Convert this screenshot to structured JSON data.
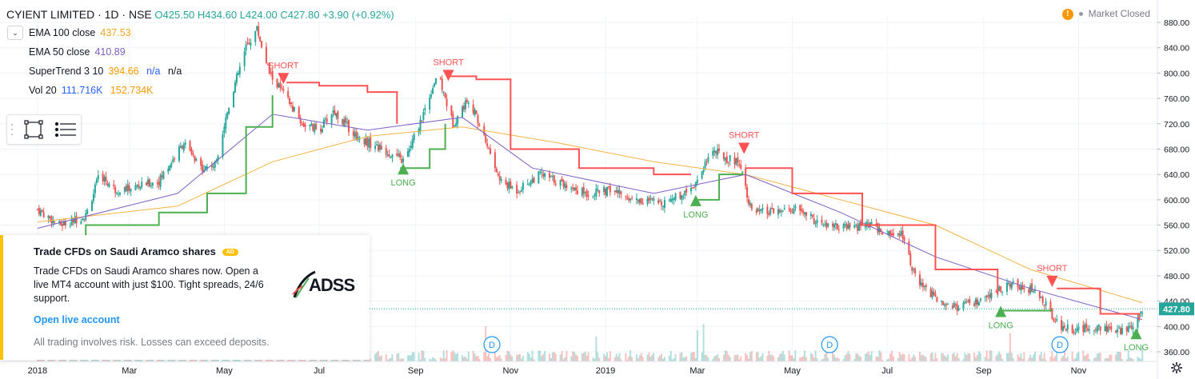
{
  "header": {
    "symbol": "CYIENT LIMITED · 1D · NSE",
    "open": "O425.50",
    "high": "H434.60",
    "low": "L424.00",
    "close": "C427.80",
    "change": "+3.90 (+0.92%)"
  },
  "indicators": [
    {
      "label": "EMA 100 close",
      "value": "437.53",
      "color": "#f5a623"
    },
    {
      "label": "EMA 50 close",
      "value": "410.89",
      "color": "#7b5fc4"
    },
    {
      "label": "SuperTrend 3 10",
      "value": "394.66",
      "value2": "n/a",
      "value3": "n/a",
      "color": "#ff9800"
    },
    {
      "label": "Vol 20",
      "value": "111.716K",
      "value2": "152.734K",
      "color": "#2962ff"
    }
  ],
  "market_status": "Market Closed",
  "ad": {
    "title": "Trade CFDs on Saudi Aramco shares",
    "badge": "AD",
    "body": "Trade CFDs on Saudi Aramco shares now. Open a live MT4 account with just $100. Tight spreads, 24/6 support.",
    "link": "Open live account",
    "disclaimer": "All trading involves risk. Losses can exceed deposits.",
    "logo_text": "ADSS"
  },
  "colors": {
    "up": "#26a69a",
    "down": "#ef5350",
    "ema100": "#f5b342",
    "ema50": "#7b5fc4",
    "st_up": "#4caf50",
    "st_down": "#ff5252",
    "price_label": "#26a69a"
  },
  "chart_data": {
    "type": "candlestick",
    "y_axis": {
      "min": 360,
      "max": 880,
      "ticks": [
        360,
        400,
        440,
        480,
        520,
        560,
        600,
        640,
        680,
        720,
        760,
        800,
        840,
        880
      ]
    },
    "x_axis": {
      "labels": [
        "2018",
        "Mar",
        "May",
        "Jul",
        "Sep",
        "Nov",
        "2019",
        "Mar",
        "May",
        "Jul",
        "Sep",
        "Nov"
      ]
    },
    "last_price": "427.80",
    "close_series": [
      {
        "date": "2018-01-01",
        "close": 585
      },
      {
        "date": "2018-01-15",
        "close": 560
      },
      {
        "date": "2018-02-01",
        "close": 575
      },
      {
        "date": "2018-02-10",
        "close": 640
      },
      {
        "date": "2018-02-20",
        "close": 615
      },
      {
        "date": "2018-03-05",
        "close": 620
      },
      {
        "date": "2018-03-20",
        "close": 630
      },
      {
        "date": "2018-04-05",
        "close": 690
      },
      {
        "date": "2018-04-15",
        "close": 650
      },
      {
        "date": "2018-04-25",
        "close": 655
      },
      {
        "date": "2018-05-05",
        "close": 760
      },
      {
        "date": "2018-05-15",
        "close": 840
      },
      {
        "date": "2018-05-22",
        "close": 870
      },
      {
        "date": "2018-05-30",
        "close": 800
      },
      {
        "date": "2018-06-10",
        "close": 760
      },
      {
        "date": "2018-06-20",
        "close": 720
      },
      {
        "date": "2018-07-01",
        "close": 710
      },
      {
        "date": "2018-07-10",
        "close": 740
      },
      {
        "date": "2018-07-25",
        "close": 700
      },
      {
        "date": "2018-08-10",
        "close": 680
      },
      {
        "date": "2018-08-25",
        "close": 660
      },
      {
        "date": "2018-09-05",
        "close": 730
      },
      {
        "date": "2018-09-15",
        "close": 800
      },
      {
        "date": "2018-09-25",
        "close": 720
      },
      {
        "date": "2018-10-05",
        "close": 760
      },
      {
        "date": "2018-10-15",
        "close": 700
      },
      {
        "date": "2018-10-25",
        "close": 630
      },
      {
        "date": "2018-11-05",
        "close": 615
      },
      {
        "date": "2018-11-20",
        "close": 640
      },
      {
        "date": "2018-12-05",
        "close": 625
      },
      {
        "date": "2018-12-20",
        "close": 610
      },
      {
        "date": "2019-01-05",
        "close": 615
      },
      {
        "date": "2019-01-20",
        "close": 600
      },
      {
        "date": "2019-02-05",
        "close": 595
      },
      {
        "date": "2019-02-20",
        "close": 610
      },
      {
        "date": "2019-03-01",
        "close": 630
      },
      {
        "date": "2019-03-10",
        "close": 680
      },
      {
        "date": "2019-03-20",
        "close": 665
      },
      {
        "date": "2019-03-28",
        "close": 660
      },
      {
        "date": "2019-04-05",
        "close": 580
      },
      {
        "date": "2019-04-20",
        "close": 580
      },
      {
        "date": "2019-05-05",
        "close": 585
      },
      {
        "date": "2019-05-20",
        "close": 560
      },
      {
        "date": "2019-06-05",
        "close": 555
      },
      {
        "date": "2019-06-20",
        "close": 560
      },
      {
        "date": "2019-07-01",
        "close": 545
      },
      {
        "date": "2019-07-10",
        "close": 550
      },
      {
        "date": "2019-07-20",
        "close": 470
      },
      {
        "date": "2019-08-01",
        "close": 445
      },
      {
        "date": "2019-08-15",
        "close": 430
      },
      {
        "date": "2019-09-01",
        "close": 440
      },
      {
        "date": "2019-09-15",
        "close": 465
      },
      {
        "date": "2019-09-25",
        "close": 465
      },
      {
        "date": "2019-10-05",
        "close": 455
      },
      {
        "date": "2019-10-20",
        "close": 400
      },
      {
        "date": "2019-11-01",
        "close": 395
      },
      {
        "date": "2019-11-15",
        "close": 400
      },
      {
        "date": "2019-11-25",
        "close": 390
      },
      {
        "date": "2019-12-05",
        "close": 400
      },
      {
        "date": "2019-12-12",
        "close": 427.8
      }
    ],
    "ema100_series": [
      {
        "date": "2018-01-01",
        "value": 565
      },
      {
        "date": "2018-04-01",
        "value": 590
      },
      {
        "date": "2018-06-01",
        "value": 660
      },
      {
        "date": "2018-08-01",
        "value": 700
      },
      {
        "date": "2018-10-01",
        "value": 715
      },
      {
        "date": "2018-12-01",
        "value": 690
      },
      {
        "date": "2019-02-01",
        "value": 660
      },
      {
        "date": "2019-04-01",
        "value": 640
      },
      {
        "date": "2019-06-01",
        "value": 600
      },
      {
        "date": "2019-08-01",
        "value": 560
      },
      {
        "date": "2019-10-01",
        "value": 490
      },
      {
        "date": "2019-12-12",
        "value": 437.53
      }
    ],
    "ema50_series": [
      {
        "date": "2018-01-01",
        "value": 555
      },
      {
        "date": "2018-04-01",
        "value": 610
      },
      {
        "date": "2018-06-01",
        "value": 735
      },
      {
        "date": "2018-08-01",
        "value": 710
      },
      {
        "date": "2018-10-01",
        "value": 730
      },
      {
        "date": "2018-11-15",
        "value": 650
      },
      {
        "date": "2019-02-01",
        "value": 610
      },
      {
        "date": "2019-04-01",
        "value": 640
      },
      {
        "date": "2019-06-01",
        "value": 580
      },
      {
        "date": "2019-08-01",
        "value": 510
      },
      {
        "date": "2019-10-01",
        "value": 460
      },
      {
        "date": "2019-12-12",
        "value": 410.89
      }
    ],
    "supertrend_segments": [
      {
        "trend": "up",
        "points": [
          {
            "date": "2018-01-01",
            "value": 530
          },
          {
            "date": "2018-02-01",
            "value": 560
          },
          {
            "date": "2018-03-20",
            "value": 580
          },
          {
            "date": "2018-04-20",
            "value": 610
          },
          {
            "date": "2018-05-15",
            "value": 715
          },
          {
            "date": "2018-06-01",
            "value": 765
          }
        ]
      },
      {
        "trend": "down",
        "points": [
          {
            "date": "2018-06-10",
            "value": 785
          },
          {
            "date": "2018-07-01",
            "value": 780
          },
          {
            "date": "2018-08-01",
            "value": 770
          },
          {
            "date": "2018-08-20",
            "value": 720
          }
        ]
      },
      {
        "trend": "up",
        "points": [
          {
            "date": "2018-08-22",
            "value": 650
          },
          {
            "date": "2018-09-10",
            "value": 680
          },
          {
            "date": "2018-09-20",
            "value": 720
          }
        ]
      },
      {
        "trend": "down",
        "points": [
          {
            "date": "2018-09-22",
            "value": 795
          },
          {
            "date": "2018-10-10",
            "value": 790
          },
          {
            "date": "2018-11-01",
            "value": 680
          },
          {
            "date": "2018-12-15",
            "value": 650
          },
          {
            "date": "2019-02-01",
            "value": 640
          },
          {
            "date": "2019-02-25",
            "value": 640
          }
        ]
      },
      {
        "trend": "up",
        "points": [
          {
            "date": "2019-02-28",
            "value": 600
          },
          {
            "date": "2019-03-15",
            "value": 640
          },
          {
            "date": "2019-03-30",
            "value": 645
          }
        ]
      },
      {
        "trend": "down",
        "points": [
          {
            "date": "2019-04-01",
            "value": 650
          },
          {
            "date": "2019-05-01",
            "value": 610
          },
          {
            "date": "2019-06-15",
            "value": 560
          },
          {
            "date": "2019-08-01",
            "value": 490
          },
          {
            "date": "2019-09-10",
            "value": 450
          }
        ]
      },
      {
        "trend": "up",
        "points": [
          {
            "date": "2019-09-12",
            "value": 425
          },
          {
            "date": "2019-10-15",
            "value": 425
          }
        ]
      },
      {
        "trend": "down",
        "points": [
          {
            "date": "2019-10-18",
            "value": 460
          },
          {
            "date": "2019-11-15",
            "value": 420
          },
          {
            "date": "2019-12-10",
            "value": 410
          }
        ]
      }
    ],
    "signals": [
      {
        "label": "SHORT",
        "date": "2018-06-08",
        "price": 790,
        "type": "short"
      },
      {
        "label": "SHORT",
        "date": "2018-09-22",
        "price": 795,
        "type": "short"
      },
      {
        "label": "LONG",
        "date": "2018-08-24",
        "price": 650,
        "type": "long"
      },
      {
        "label": "SHORT",
        "date": "2019-03-31",
        "price": 680,
        "type": "short"
      },
      {
        "label": "LONG",
        "date": "2019-02-28",
        "price": 600,
        "type": "long"
      },
      {
        "label": "LONG",
        "date": "2019-09-12",
        "price": 425,
        "type": "long"
      },
      {
        "label": "SHORT",
        "date": "2019-10-15",
        "price": 470,
        "type": "short"
      },
      {
        "label": "LONG",
        "date": "2019-12-08",
        "price": 390,
        "type": "long"
      }
    ],
    "dividend_markers": [
      {
        "label": "D",
        "date": "2018-07-01"
      },
      {
        "label": "D",
        "date": "2018-10-20"
      },
      {
        "label": "D",
        "date": "2019-05-25"
      },
      {
        "label": "D",
        "date": "2019-10-20"
      }
    ]
  }
}
